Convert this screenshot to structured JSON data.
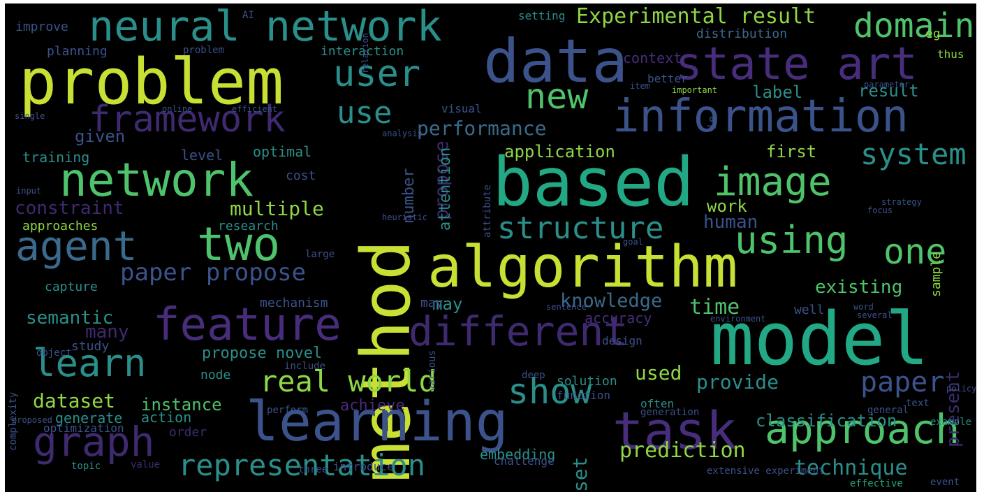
{
  "palette": {
    "yellow": "#c8df34",
    "lime": "#8fd744",
    "green": "#4ec36b",
    "teal": "#22a884",
    "cyan": "#2a8f8a",
    "blue": "#3a6a8c",
    "indigo": "#3b528b",
    "purple": "#472d7b",
    "violet": "#3f2a6f"
  },
  "words": [
    "model",
    "method",
    "based",
    "problem",
    "data",
    "algorithm",
    "learning",
    "task",
    "information",
    "network",
    "state art",
    "neural network",
    "two",
    "feature",
    "different",
    "approach",
    "graph",
    "agent",
    "user",
    "image",
    "framework",
    "learn",
    "using",
    "one",
    "real world",
    "representation",
    "show",
    "domain",
    "new",
    "use",
    "structure",
    "paper propose",
    "system",
    "paper",
    "Experimental result",
    "performance",
    "multiple",
    "constraint",
    "propose",
    "present",
    "attention",
    "number",
    "prediction",
    "technique",
    "classification",
    "existing",
    "knowledge",
    "time",
    "provide",
    "dataset",
    "instance",
    "semantic",
    "many",
    "used",
    "set",
    "label",
    "result",
    "context",
    "distribution",
    "setting",
    "application",
    "first",
    "optimal",
    "training",
    "level",
    "cost",
    "human",
    "work",
    "research",
    "approaches",
    "capture",
    "mechanism",
    "may",
    "accuracy",
    "study",
    "propose novel",
    "node",
    "order",
    "achieve",
    "generate",
    "action",
    "optimization",
    "embedding",
    "challenge",
    "solution",
    "often",
    "generation",
    "example",
    "extensive experiment",
    "effective",
    "introduce",
    "value",
    "topic",
    "three",
    "given",
    "better",
    "visual",
    "design",
    "function",
    "sample",
    "interaction",
    "planning",
    "improve",
    "may",
    "thus",
    "eg",
    "ie",
    "well",
    "deep",
    "object",
    "complexity",
    "proposed",
    "perform",
    "general",
    "text",
    "event",
    "AI",
    "important",
    "include",
    "various",
    "attribute",
    "large",
    "input",
    "online",
    "efficient",
    "single",
    "item",
    "relation",
    "analysis",
    "strategy",
    "parameter",
    "word",
    "sentence",
    "several",
    "environment",
    "policy",
    "heuristic",
    "problem",
    "goal",
    "focus"
  ]
}
